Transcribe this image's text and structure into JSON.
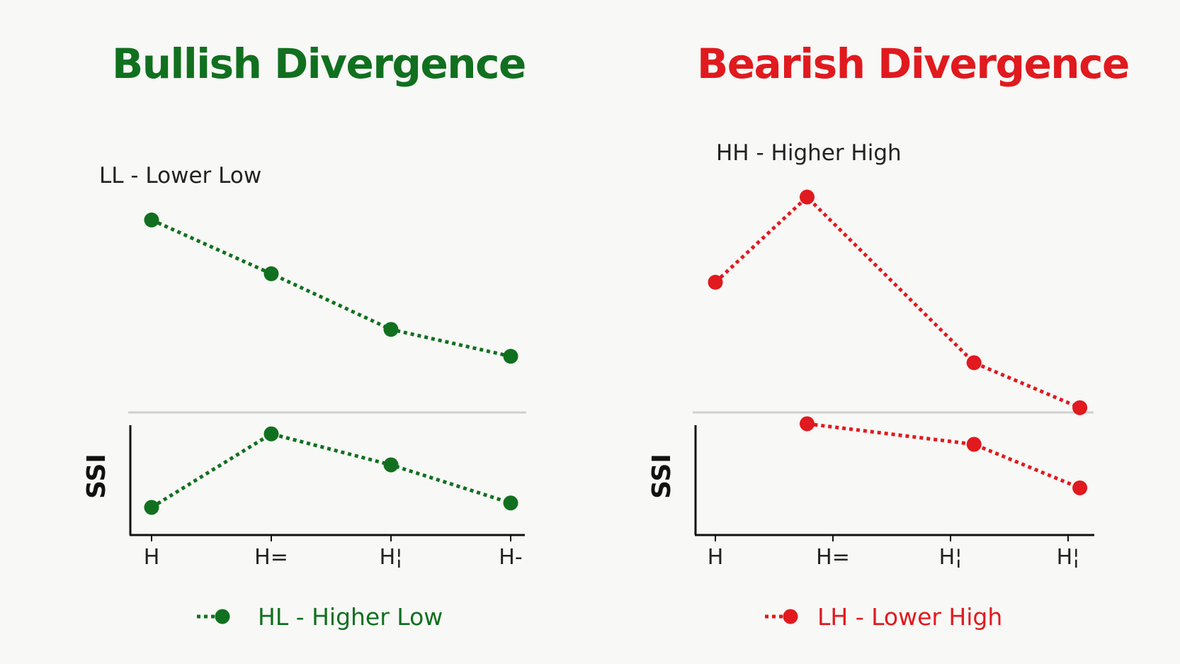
{
  "colors": {
    "bullish": "#11701f",
    "bearish": "#e01a1e",
    "axis": "#111111",
    "separator": "#cfcfcf",
    "text": "#222222"
  },
  "chart_data": [
    {
      "type": "line",
      "title": "Bullish Divergence",
      "color": "#11701f",
      "x": [
        "H",
        "H=",
        "H¦",
        "H-"
      ],
      "price": {
        "values": [
          91,
          63,
          34,
          20
        ],
        "x_index": [
          0,
          1,
          2,
          3
        ],
        "annotation": "LL - Lower Low"
      },
      "indicator": {
        "label": "SSI",
        "values": [
          12,
          95,
          60,
          17
        ],
        "x_index": [
          0,
          1,
          2,
          3
        ]
      },
      "legend": "HL - Higher Low",
      "legend_placement": "bottom",
      "grid": false
    },
    {
      "type": "line",
      "title": "Bearish Divergence",
      "color": "#e01a1e",
      "x": [
        "H",
        "H=",
        "H¦",
        "H¦"
      ],
      "price": {
        "values": [
          55,
          91,
          21,
          2
        ],
        "x_index": [
          0,
          0.78,
          2.2,
          3.1
        ],
        "annotation": "HH - Higher High"
      },
      "indicator": {
        "label": "SSI",
        "values": [
          100,
          75,
          22
        ],
        "x_index": [
          0.78,
          2.2,
          3.1
        ]
      },
      "legend": "LH - Lower High",
      "legend_placement": "bottom",
      "grid": false
    }
  ]
}
